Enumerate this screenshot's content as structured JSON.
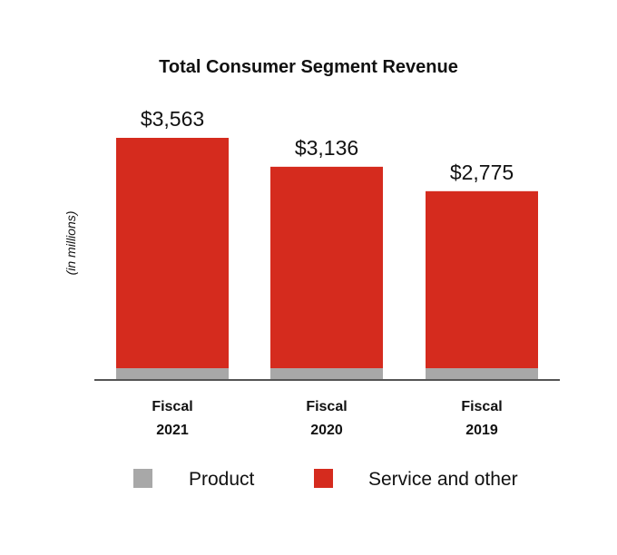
{
  "chart_data": {
    "type": "bar",
    "stacked": true,
    "title": "Total Consumer Segment Revenue",
    "ylabel": "(in millions)",
    "xlabel": "",
    "categories": [
      [
        "Fiscal",
        "2021"
      ],
      [
        "Fiscal",
        "2020"
      ],
      [
        "Fiscal",
        "2019"
      ]
    ],
    "total_labels": [
      "$3,563",
      "$3,136",
      "$2,775"
    ],
    "totals": [
      3563,
      3136,
      2775
    ],
    "series": [
      {
        "name": "Product",
        "values": [
          160,
          160,
          160
        ],
        "color": "#a8a8a8"
      },
      {
        "name": "Service and other",
        "values": [
          3403,
          2976,
          2615
        ],
        "color": "#d52b1e"
      }
    ],
    "ylim": [
      0,
      3750
    ],
    "grid": false,
    "legend_position": "bottom"
  }
}
